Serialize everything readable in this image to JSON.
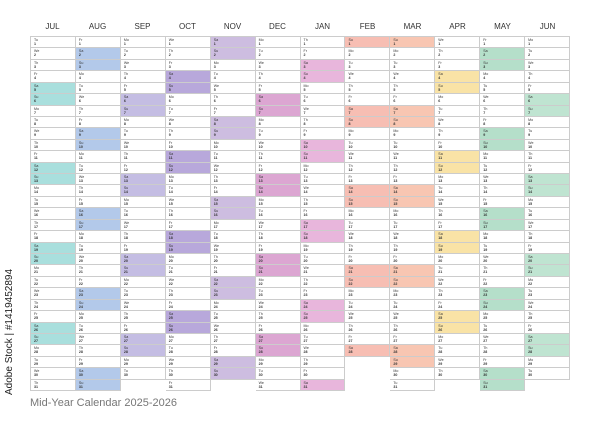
{
  "weekdays": [
    "Mo",
    "Tu",
    "We",
    "Th",
    "Fr",
    "Sa",
    "Su"
  ],
  "months": [
    {
      "name": "JUL",
      "start": 1,
      "days": 31,
      "color": "#a9dfdd"
    },
    {
      "name": "AUG",
      "start": 4,
      "days": 31,
      "color": "#b3c9ea"
    },
    {
      "name": "SEP",
      "start": 0,
      "days": 30,
      "color": "#c4bde3"
    },
    {
      "name": "OCT",
      "start": 2,
      "days": 31,
      "color": "#b8a8db"
    },
    {
      "name": "NOV",
      "start": 5,
      "days": 30,
      "color": "#cdbde0"
    },
    {
      "name": "DEC",
      "start": 0,
      "days": 31,
      "color": "#dca6d2"
    },
    {
      "name": "JAN",
      "start": 3,
      "days": 31,
      "color": "#e8b6dc"
    },
    {
      "name": "FEB",
      "start": 6,
      "days": 28,
      "color": "#f7beb3"
    },
    {
      "name": "MAR",
      "start": 6,
      "days": 31,
      "color": "#f8c6b2"
    },
    {
      "name": "APR",
      "start": 2,
      "days": 30,
      "color": "#f9e3a6"
    },
    {
      "name": "MAY",
      "start": 4,
      "days": 31,
      "color": "#b5dfca"
    },
    {
      "name": "JUN",
      "start": 0,
      "days": 30,
      "color": "#bfe4d1"
    }
  ],
  "footer": "Mid-Year Calendar 2025-2026",
  "stock_label": "Adobe Stock | #1419452894"
}
